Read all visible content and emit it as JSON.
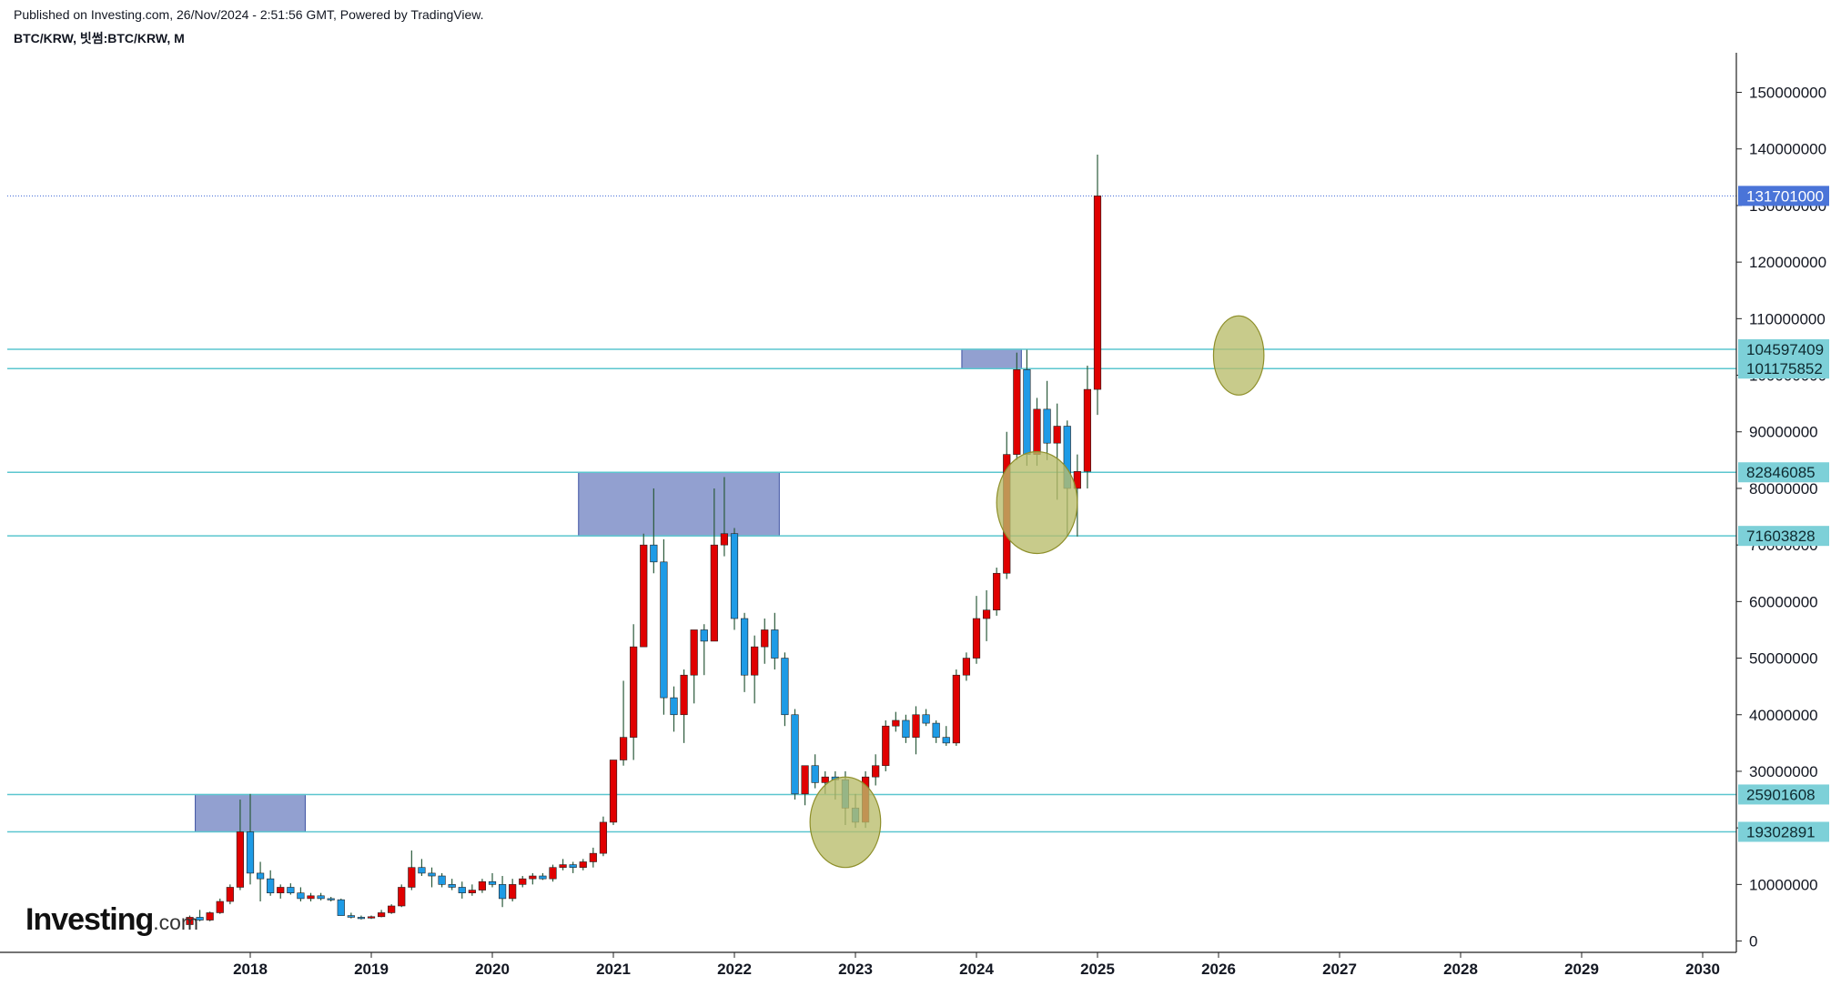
{
  "header": {
    "published": "Published on Investing.com, 26/Nov/2024 - 2:51:56 GMT, Powered by TradingView.",
    "symbol": "BTC/KRW, 빗썸:BTC/KRW, M"
  },
  "logo": {
    "brand": "Investing",
    "suffix": ".com"
  },
  "colors": {
    "up": "#e00000",
    "down": "#1e9be6",
    "wick": "#2b5a3b",
    "level_line": "#5bc6cf",
    "level_tag": "#7dd0d8",
    "price_tag": "#4a74d8",
    "zone_fill": "#7f8fc8",
    "ellipse_fill": "#b9bd6a"
  },
  "chart_data": {
    "type": "candlestick",
    "interval": "M",
    "start": "2017-07",
    "ylim": [
      -2000000,
      157000000
    ],
    "xlim": [
      "2017-01",
      "2030-12"
    ],
    "y_ticks": [
      "150000000",
      "140000000",
      "130000000",
      "120000000",
      "110000000",
      "100000000",
      "90000000",
      "80000000",
      "70000000",
      "60000000",
      "50000000",
      "40000000",
      "30000000",
      "20000000",
      "10000000",
      "0"
    ],
    "x_ticks": [
      "2018",
      "2019",
      "2020",
      "2021",
      "2022",
      "2023",
      "2024",
      "2025",
      "2026",
      "2027",
      "2028",
      "2029",
      "2030"
    ],
    "last_price": "131701000",
    "levels": [
      "104597409",
      "101175852",
      "82846085",
      "71603828",
      "25901608",
      "19302891"
    ],
    "zones": [
      {
        "from": "2017-08",
        "to": "2018-06",
        "low": 19302891,
        "high": 25901608
      },
      {
        "from": "2020-10",
        "to": "2022-05",
        "low": 71603828,
        "high": 82846085
      },
      {
        "from": "2023-12",
        "to": "2024-05",
        "low": 101175852,
        "high": 104597409
      }
    ],
    "ellipses": [
      {
        "at": "2022-12",
        "y": 21000000,
        "rx": 3.5,
        "ry": 8000000
      },
      {
        "at": "2024-07",
        "y": 77500000,
        "rx": 4,
        "ry": 9000000
      },
      {
        "at": "2026-03",
        "y": 103500000,
        "rx": 2.5,
        "ry": 7000000
      }
    ],
    "ohlc": [
      [
        2900000,
        4500000,
        2700000,
        4200000
      ],
      [
        4200000,
        5500000,
        3500000,
        3700000
      ],
      [
        3700000,
        5200000,
        3500000,
        5000000
      ],
      [
        5000000,
        7500000,
        4800000,
        7000000
      ],
      [
        7000000,
        10000000,
        6500000,
        9500000
      ],
      [
        9500000,
        25000000,
        9000000,
        19302891
      ],
      [
        19302891,
        26000000,
        10000000,
        12000000
      ],
      [
        12000000,
        14000000,
        7000000,
        11000000
      ],
      [
        11000000,
        12500000,
        8000000,
        8500000
      ],
      [
        8500000,
        10000000,
        7500000,
        9500000
      ],
      [
        9500000,
        10200000,
        8200000,
        8500000
      ],
      [
        8500000,
        9500000,
        7000000,
        7500000
      ],
      [
        7500000,
        8500000,
        7000000,
        8000000
      ],
      [
        8000000,
        8500000,
        7200000,
        7500000
      ],
      [
        7500000,
        7800000,
        7000000,
        7300000
      ],
      [
        7300000,
        7500000,
        5000000,
        4500000
      ],
      [
        4500000,
        5000000,
        4000000,
        4200000
      ],
      [
        4200000,
        4500000,
        3800000,
        4100000
      ],
      [
        4100000,
        4500000,
        3900000,
        4300000
      ],
      [
        4300000,
        5500000,
        4200000,
        5000000
      ],
      [
        5000000,
        6500000,
        4800000,
        6200000
      ],
      [
        6200000,
        10000000,
        6000000,
        9500000
      ],
      [
        9500000,
        16000000,
        9000000,
        13000000
      ],
      [
        13000000,
        14500000,
        11500000,
        12000000
      ],
      [
        12000000,
        13000000,
        9500000,
        11500000
      ],
      [
        11500000,
        12000000,
        9500000,
        10000000
      ],
      [
        10000000,
        11000000,
        9000000,
        9500000
      ],
      [
        9500000,
        10500000,
        7500000,
        8500000
      ],
      [
        8500000,
        10000000,
        8000000,
        9000000
      ],
      [
        9000000,
        11000000,
        8500000,
        10500000
      ],
      [
        10500000,
        12000000,
        9500000,
        10000000
      ],
      [
        10000000,
        11500000,
        6000000,
        7500000
      ],
      [
        7500000,
        11000000,
        7000000,
        10000000
      ],
      [
        10000000,
        11500000,
        9500000,
        11000000
      ],
      [
        11000000,
        12000000,
        10000000,
        11500000
      ],
      [
        11500000,
        12000000,
        10800000,
        11000000
      ],
      [
        11000000,
        13500000,
        10500000,
        13000000
      ],
      [
        13000000,
        14500000,
        12500000,
        13500000
      ],
      [
        13500000,
        14000000,
        12000000,
        13000000
      ],
      [
        13000000,
        14500000,
        12500000,
        14000000
      ],
      [
        14000000,
        16500000,
        13000000,
        15500000
      ],
      [
        15500000,
        22000000,
        15000000,
        21000000
      ],
      [
        21000000,
        32000000,
        20500000,
        32000000
      ],
      [
        32000000,
        46000000,
        31000000,
        36000000
      ],
      [
        36000000,
        56000000,
        32000000,
        52000000
      ],
      [
        52000000,
        72000000,
        52000000,
        70000000
      ],
      [
        70000000,
        80000000,
        65000000,
        67000000
      ],
      [
        67000000,
        71000000,
        40000000,
        43000000
      ],
      [
        43000000,
        45000000,
        37000000,
        40000000
      ],
      [
        40000000,
        48000000,
        35000000,
        47000000
      ],
      [
        47000000,
        55000000,
        42000000,
        55000000
      ],
      [
        55000000,
        56000000,
        47000000,
        53000000
      ],
      [
        53000000,
        80000000,
        53000000,
        70000000
      ],
      [
        70000000,
        82000000,
        68000000,
        72000000
      ],
      [
        72000000,
        73000000,
        55000000,
        57000000
      ],
      [
        57000000,
        58000000,
        44000000,
        47000000
      ],
      [
        47000000,
        54000000,
        42000000,
        52000000
      ],
      [
        52000000,
        57000000,
        49000000,
        55000000
      ],
      [
        55000000,
        58000000,
        48000000,
        50000000
      ],
      [
        50000000,
        51000000,
        38000000,
        40000000
      ],
      [
        40000000,
        41000000,
        25000000,
        26000000
      ],
      [
        26000000,
        30000000,
        24000000,
        31000000
      ],
      [
        31000000,
        33000000,
        27000000,
        28000000
      ],
      [
        28000000,
        30000000,
        26000000,
        29000000
      ],
      [
        29000000,
        30000000,
        25000000,
        28500000
      ],
      [
        28500000,
        30000000,
        20500000,
        23500000
      ],
      [
        23500000,
        26000000,
        20000000,
        21000000
      ],
      [
        21000000,
        30000000,
        20000000,
        29000000
      ],
      [
        29000000,
        33000000,
        27500000,
        31000000
      ],
      [
        31000000,
        39000000,
        30000000,
        38000000
      ],
      [
        38000000,
        40500000,
        37000000,
        39000000
      ],
      [
        39000000,
        40000000,
        35000000,
        36000000
      ],
      [
        36000000,
        41500000,
        33000000,
        40000000
      ],
      [
        40000000,
        41000000,
        38000000,
        38500000
      ],
      [
        38500000,
        39000000,
        35000000,
        36000000
      ],
      [
        36000000,
        38000000,
        34500000,
        35000000
      ],
      [
        35000000,
        48000000,
        34500000,
        47000000
      ],
      [
        47000000,
        51000000,
        46000000,
        50000000
      ],
      [
        50000000,
        61000000,
        49000000,
        57000000
      ],
      [
        57000000,
        62000000,
        53000000,
        58500000
      ],
      [
        58500000,
        66000000,
        57500000,
        65000000
      ],
      [
        65000000,
        90000000,
        64000000,
        86000000
      ],
      [
        86000000,
        104000000,
        85000000,
        101000000
      ],
      [
        101000000,
        104500000,
        84000000,
        86000000
      ],
      [
        86000000,
        96000000,
        84000000,
        94000000
      ],
      [
        94000000,
        99000000,
        85000000,
        88000000
      ],
      [
        88000000,
        95000000,
        78000000,
        91000000
      ],
      [
        91000000,
        92000000,
        71500000,
        80000000
      ],
      [
        80000000,
        86000000,
        71500000,
        83000000
      ],
      [
        83000000,
        101700000,
        80000000,
        97500000
      ],
      [
        97500000,
        139000000,
        93000000,
        131701000
      ]
    ]
  }
}
